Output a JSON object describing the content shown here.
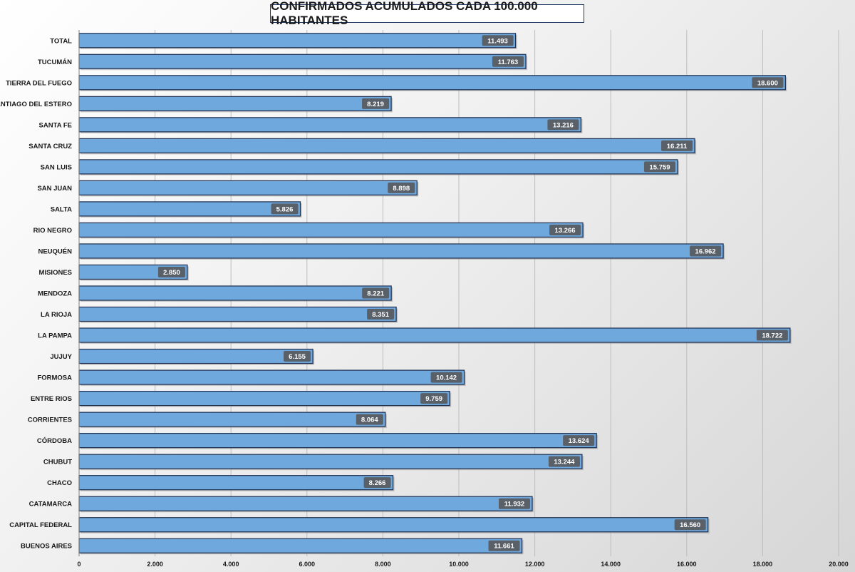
{
  "chart_data": {
    "type": "bar",
    "orientation": "horizontal",
    "title": "CONFIRMADOS ACUMULADOS CADA 100.000 HABITANTES",
    "categories": [
      "TOTAL",
      "TUCUMÁN",
      "TIERRA  DEL FUEGO",
      "SANTIAGO  DEL ESTERO",
      "SANTA FE",
      "SANTA CRUZ",
      "SAN LUIS",
      "SAN JUAN",
      "SALTA",
      "RIO NEGRO",
      "NEUQUÉN",
      "MISIONES",
      "MENDOZA",
      "LA RIOJA",
      "LA PAMPA",
      "JUJUY",
      "FORMOSA",
      "ENTRE  RIOS",
      "CORRIENTES",
      "CÓRDOBA",
      "CHUBUT",
      "CHACO",
      "CATAMARCA",
      "CAPITAL  FEDERAL",
      "BUENOS  AIRES"
    ],
    "values": [
      11493,
      11763,
      18600,
      8219,
      13216,
      16211,
      15759,
      8898,
      5826,
      13266,
      16962,
      2850,
      8221,
      8351,
      18722,
      6155,
      10142,
      9759,
      8064,
      13624,
      13244,
      8266,
      11932,
      16560,
      11661
    ],
    "value_labels": [
      "11.493",
      "11.763",
      "18.600",
      "8.219",
      "13.216",
      "16.211",
      "15.759",
      "8.898",
      "5.826",
      "13.266",
      "16.962",
      "2.850",
      "8.221",
      "8.351",
      "18.722",
      "6.155",
      "10.142",
      "9.759",
      "8.064",
      "13.624",
      "13.244",
      "8.266",
      "11.932",
      "16.560",
      "11.661"
    ],
    "xlim": [
      0,
      20000
    ],
    "xticks": [
      0,
      2000,
      4000,
      6000,
      8000,
      10000,
      12000,
      14000,
      16000,
      18000,
      20000
    ],
    "xtick_labels": [
      "0",
      "2.000",
      "4.000",
      "6.000",
      "8.000",
      "10.000",
      "12.000",
      "14.000",
      "16.000",
      "18.000",
      "20.000"
    ],
    "grid": "vertical",
    "legend": "none",
    "bar_color": "#6fa8dc",
    "bar_border_color": "#1f2f4f",
    "value_label_bg": "#5a6068"
  }
}
